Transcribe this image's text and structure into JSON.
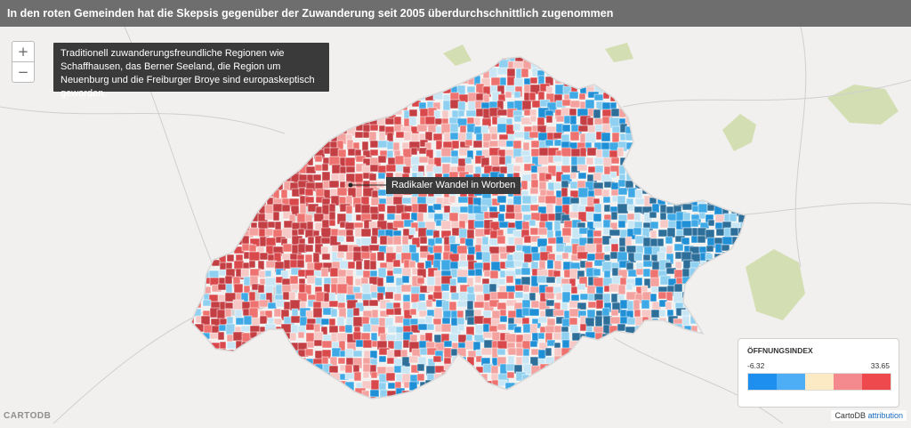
{
  "title": "In den roten Gemeinden hat die Skepsis gegenüber der Zuwanderung seit 2005 überdurchschnittlich zugenommen",
  "zoom": {
    "in_label": "+",
    "out_label": "−"
  },
  "info_text": "Traditionell zuwanderungsfreundliche Regionen wie Schaffhausen, das Berner Seeland, die Region um Neuenburg und die Freiburger Broye sind europaskeptisch geworden.",
  "callout": {
    "label": "Radikaler Wandel in Worben"
  },
  "legend": {
    "title": "ÖFFNUNGSINDEX",
    "min": "-6.32",
    "max": "33.65",
    "colors": [
      "#1f8fef",
      "#4eaef5",
      "#fbeac3",
      "#f58a8e",
      "#ee4a4d"
    ]
  },
  "map_palette": [
    "#2e6f9a",
    "#1f8fd6",
    "#3fa9e6",
    "#8fd0f0",
    "#c9e6f4",
    "#f6c8c6",
    "#f3a29f",
    "#ee7370",
    "#d9484b",
    "#c43f44"
  ],
  "attribution": {
    "text": "CartoDB",
    "link": "attribution"
  },
  "watermark": "CARTODB"
}
